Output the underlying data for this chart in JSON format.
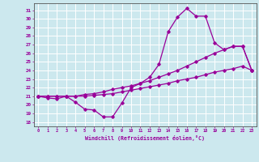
{
  "xlabel": "Windchill (Refroidissement éolien,°C)",
  "xlim": [
    -0.5,
    23.5
  ],
  "ylim": [
    17.5,
    31.8
  ],
  "yticks": [
    18,
    19,
    20,
    21,
    22,
    23,
    24,
    25,
    26,
    27,
    28,
    29,
    30,
    31
  ],
  "xticks": [
    0,
    1,
    2,
    3,
    4,
    5,
    6,
    7,
    8,
    9,
    10,
    11,
    12,
    13,
    14,
    15,
    16,
    17,
    18,
    19,
    20,
    21,
    22,
    23
  ],
  "bg_color": "#cce8ee",
  "grid_color": "#ffffff",
  "line_color": "#990099",
  "lines": [
    [
      21.0,
      20.8,
      20.7,
      21.0,
      20.3,
      19.5,
      19.4,
      18.6,
      18.6,
      20.2,
      22.0,
      22.5,
      23.2,
      24.7,
      28.5,
      30.2,
      31.2,
      30.3,
      30.3,
      27.2,
      26.4,
      26.8,
      26.8,
      24.0
    ],
    [
      21.0,
      21.0,
      21.0,
      21.0,
      21.0,
      21.2,
      21.3,
      21.5,
      21.8,
      22.0,
      22.2,
      22.5,
      22.8,
      23.2,
      23.6,
      24.0,
      24.5,
      25.0,
      25.5,
      26.0,
      26.4,
      26.8,
      26.8,
      24.0
    ],
    [
      21.0,
      21.0,
      21.0,
      21.0,
      21.0,
      21.0,
      21.1,
      21.2,
      21.3,
      21.5,
      21.7,
      21.9,
      22.1,
      22.3,
      22.5,
      22.8,
      23.0,
      23.2,
      23.5,
      23.8,
      24.0,
      24.2,
      24.5,
      24.0
    ]
  ],
  "marker": "D",
  "markersize": 1.8,
  "linewidth": 0.9
}
